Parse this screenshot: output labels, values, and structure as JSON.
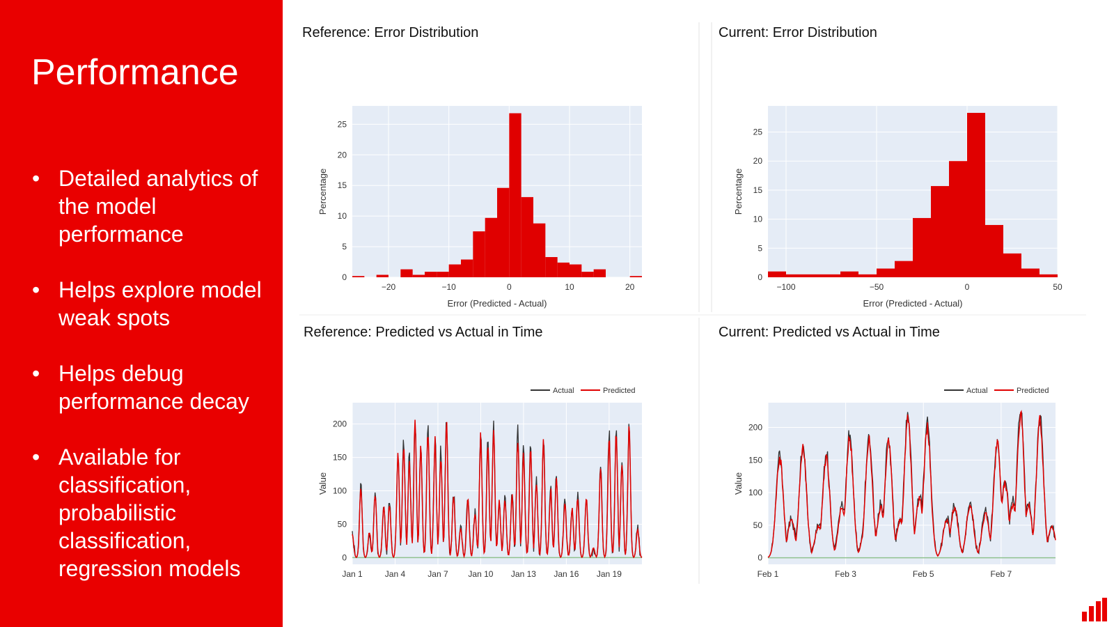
{
  "slide": {
    "title": "Performance",
    "bullets": [
      "Detailed analytics of the model performance",
      "Helps explore model weak spots",
      "Helps debug performance decay",
      "Available for classification, probabilistic classification, regression models"
    ],
    "bullet_glyph": "•"
  },
  "colors": {
    "accent": "#e90000",
    "plot_bg": "#e5ecf6",
    "actual": "#333333",
    "predicted": "#e00000",
    "zero_line": "#8fc18f"
  },
  "chart_data": [
    {
      "type": "bar",
      "title": "Reference: Error Distribution",
      "xlabel": "Error (Predicted - Actual)",
      "ylabel": "Percentage",
      "xlim": [
        -26,
        22
      ],
      "ylim": [
        0,
        28
      ],
      "xticks": [
        -20,
        -10,
        0,
        10,
        20
      ],
      "xtick_labels": [
        "−20",
        "−10",
        "0",
        "10",
        "20"
      ],
      "yticks": [
        0,
        5,
        10,
        15,
        20,
        25
      ],
      "bin_edges": [
        -26,
        -24,
        -22,
        -20,
        -18,
        -16,
        -14,
        -12,
        -10,
        -8,
        -6,
        -4,
        -2,
        0,
        2,
        4,
        6,
        8,
        10,
        12,
        14,
        16,
        18,
        20,
        22
      ],
      "values": [
        0.2,
        0,
        0.4,
        0,
        1.3,
        0.4,
        0.9,
        0.9,
        2.1,
        2.9,
        7.5,
        9.7,
        14.6,
        26.8,
        13.1,
        8.8,
        3.3,
        2.4,
        2.1,
        0.9,
        1.3,
        0,
        0,
        0.2
      ]
    },
    {
      "type": "bar",
      "title": "Current: Error Distribution",
      "xlabel": "Error (Predicted - Actual)",
      "ylabel": "Percentage",
      "xlim": [
        -110,
        50
      ],
      "ylim": [
        0,
        29.5
      ],
      "xticks": [
        -100,
        -50,
        0,
        50
      ],
      "xtick_labels": [
        "−100",
        "−50",
        "0",
        "50"
      ],
      "yticks": [
        0,
        5,
        10,
        15,
        20,
        25
      ],
      "bin_edges": [
        -110,
        -100,
        -90,
        -80,
        -70,
        -60,
        -50,
        -40,
        -30,
        -20,
        -10,
        0,
        10,
        20,
        30,
        40,
        50
      ],
      "values": [
        1.0,
        0.5,
        0.5,
        0.5,
        1.0,
        0.5,
        1.5,
        2.8,
        10.2,
        15.7,
        20.0,
        28.3,
        9.0,
        4.1,
        1.5,
        0.5
      ]
    },
    {
      "type": "line",
      "title": "Reference: Predicted vs Actual in Time",
      "ylabel": "Value",
      "xlim": [
        1,
        21.3
      ],
      "ylim": [
        -10,
        232
      ],
      "xticks": [
        1,
        4,
        7,
        10,
        13,
        16,
        19
      ],
      "xtick_labels": [
        "Jan 1",
        "Jan 4",
        "Jan 7",
        "Jan 10",
        "Jan 13",
        "Jan 16",
        "Jan 19"
      ],
      "yticks": [
        0,
        50,
        100,
        150,
        200
      ],
      "legend": "top-right",
      "peaks": [
        [
          1.0,
          35
        ],
        [
          1.6,
          110
        ],
        [
          2.2,
          40
        ],
        [
          2.6,
          100
        ],
        [
          3.2,
          80
        ],
        [
          3.6,
          85
        ],
        [
          4.2,
          160
        ],
        [
          4.6,
          180
        ],
        [
          5.0,
          150
        ],
        [
          5.4,
          205
        ],
        [
          5.8,
          170
        ],
        [
          6.3,
          195
        ],
        [
          6.8,
          180
        ],
        [
          7.2,
          160
        ],
        [
          7.6,
          205
        ],
        [
          8.1,
          95
        ],
        [
          8.6,
          45
        ],
        [
          9.1,
          90
        ],
        [
          9.6,
          70
        ],
        [
          10.0,
          185
        ],
        [
          10.5,
          175
        ],
        [
          10.9,
          200
        ],
        [
          11.3,
          85
        ],
        [
          11.7,
          90
        ],
        [
          12.2,
          95
        ],
        [
          12.6,
          190
        ],
        [
          13.0,
          165
        ],
        [
          13.5,
          175
        ],
        [
          13.9,
          115
        ],
        [
          14.4,
          180
        ],
        [
          14.9,
          105
        ],
        [
          15.3,
          125
        ],
        [
          15.9,
          90
        ],
        [
          16.4,
          75
        ],
        [
          16.8,
          95
        ],
        [
          17.4,
          90
        ],
        [
          17.9,
          15
        ],
        [
          18.4,
          140
        ],
        [
          19.0,
          185
        ],
        [
          19.5,
          195
        ],
        [
          19.9,
          140
        ],
        [
          20.4,
          200
        ],
        [
          21.0,
          45
        ]
      ],
      "series": [
        {
          "name": "Actual"
        },
        {
          "name": "Predicted"
        }
      ]
    },
    {
      "type": "line",
      "title": "Current: Predicted vs Actual in Time",
      "ylabel": "Value",
      "xlim": [
        1,
        8.4
      ],
      "ylim": [
        -10,
        238
      ],
      "xticks": [
        1,
        3,
        5,
        7
      ],
      "xtick_labels": [
        "Feb 1",
        "Feb 3",
        "Feb 5",
        "Feb 7"
      ],
      "yticks": [
        0,
        50,
        100,
        150,
        200
      ],
      "legend": "top-right",
      "peaks": [
        [
          1.3,
          160
        ],
        [
          1.6,
          60
        ],
        [
          1.9,
          175
        ],
        [
          2.3,
          50
        ],
        [
          2.5,
          160
        ],
        [
          2.9,
          80
        ],
        [
          3.1,
          190
        ],
        [
          3.5,
          45
        ],
        [
          3.6,
          185
        ],
        [
          3.9,
          80
        ],
        [
          4.1,
          185
        ],
        [
          4.4,
          60
        ],
        [
          4.6,
          220
        ],
        [
          4.9,
          95
        ],
        [
          5.1,
          205
        ],
        [
          5.6,
          60
        ],
        [
          5.8,
          80
        ],
        [
          6.2,
          85
        ],
        [
          6.6,
          70
        ],
        [
          6.9,
          180
        ],
        [
          7.1,
          120
        ],
        [
          7.3,
          85
        ],
        [
          7.5,
          230
        ],
        [
          7.7,
          85
        ],
        [
          8.0,
          215
        ],
        [
          8.3,
          50
        ]
      ],
      "series": [
        {
          "name": "Actual"
        },
        {
          "name": "Predicted"
        }
      ]
    }
  ]
}
